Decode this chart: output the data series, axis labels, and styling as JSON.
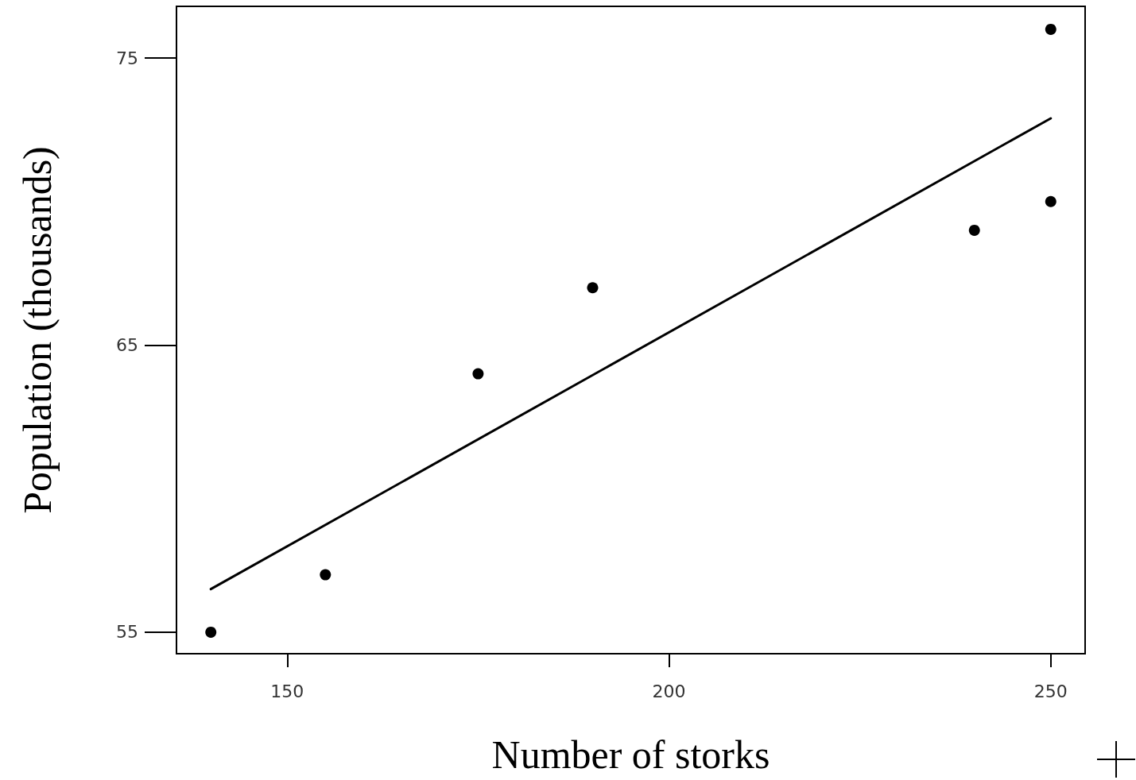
{
  "chart_data": {
    "type": "scatter",
    "xlabel": "Number of storks",
    "ylabel": "Population (thousands)",
    "xlim": [
      135.5,
      254.5
    ],
    "xticks": [
      150,
      200,
      250
    ],
    "ylim": [
      54.25,
      76.8
    ],
    "yticks": [
      55,
      65,
      75
    ],
    "grid": false,
    "marker": "circle",
    "series": [
      {
        "color": "#000000",
        "x": [
          140,
          155,
          175,
          190,
          240,
          250,
          250
        ],
        "values": [
          55,
          57,
          64,
          67,
          69,
          70,
          76
        ]
      },
      {
        "type": "line",
        "color": "#000000",
        "x": [
          140,
          250
        ],
        "values": [
          56.5,
          72.9
        ],
        "marker": "none",
        "line_style": "solid"
      }
    ]
  }
}
